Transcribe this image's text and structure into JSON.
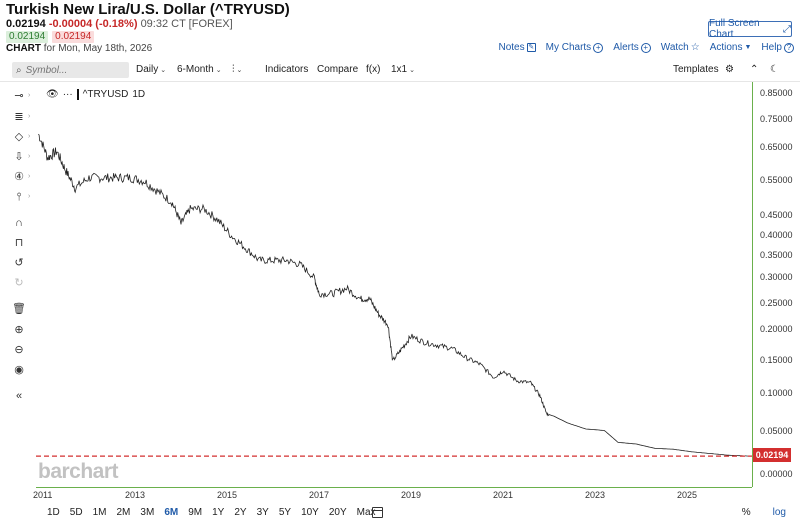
{
  "header": {
    "title": "Turkish New Lira/U.S. Dollar (^TRYUSD)",
    "last": "0.02194",
    "change": "-0.00004 (-0.18%)",
    "time_exchange": "09:32 CT [FOREX]",
    "bid": "0.02194",
    "ask": "0.02194",
    "chart_label": "CHART",
    "chart_date": "for Mon, May 18th, 2026",
    "fullscreen_label": "Full Screen Chart"
  },
  "top_links": {
    "notes": "Notes",
    "my_charts": "My Charts",
    "alerts": "Alerts",
    "watch": "Watch",
    "actions": "Actions",
    "help": "Help"
  },
  "toolbar": {
    "search_placeholder": "Symbol...",
    "interval": "Daily",
    "period": "6-Month",
    "chart_type_icon": "bar-chart-type-icon",
    "indicators": "Indicators",
    "compare": "Compare",
    "fx": "f(x)",
    "layout": "1x1",
    "templates": "Templates"
  },
  "legend": {
    "symbol": "^TRYUSD",
    "interval": "1D",
    "dots": "···"
  },
  "watermark": "barchart",
  "y_axis": {
    "ticks": [
      "0.85000",
      "0.75000",
      "0.65000",
      "0.55000",
      "0.45000",
      "0.40000",
      "0.35000",
      "0.30000",
      "0.25000",
      "0.20000",
      "0.15000",
      "0.10000",
      "0.05000",
      "0.00000"
    ],
    "last_price_label": "0.02194"
  },
  "x_axis": {
    "ticks": [
      "2011",
      "2013",
      "2015",
      "2017",
      "2019",
      "2021",
      "2023",
      "2025"
    ]
  },
  "ranges": {
    "items": [
      "1D",
      "5D",
      "1M",
      "2M",
      "3M",
      "6M",
      "9M",
      "1Y",
      "2Y",
      "3Y",
      "5Y",
      "10Y",
      "20Y",
      "Max"
    ],
    "active": "6M",
    "percent": "%",
    "log": "log"
  },
  "colors": {
    "price_line": "#222222",
    "last_price": "#d32f2f",
    "axis": "#6ab04c",
    "link": "#1f5aa8"
  },
  "chart_data": {
    "type": "line",
    "title": "Turkish New Lira/U.S. Dollar (^TRYUSD)",
    "xlabel": "",
    "ylabel": "",
    "y_scale": "log",
    "ylim": [
      0.0,
      0.85
    ],
    "xlim": [
      2011.0,
      2026.4
    ],
    "grid": false,
    "series": [
      {
        "name": "^TRYUSD",
        "x": [
          2010.9,
          2011.1,
          2011.3,
          2011.5,
          2011.7,
          2012.0,
          2012.3,
          2012.6,
          2012.9,
          2013.2,
          2013.5,
          2013.8,
          2014.0,
          2014.2,
          2014.5,
          2014.8,
          2015.1,
          2015.4,
          2015.7,
          2016.0,
          2016.3,
          2016.6,
          2016.9,
          2017.0,
          2017.3,
          2017.6,
          2017.9,
          2018.1,
          2018.3,
          2018.5,
          2018.6,
          2018.8,
          2019.0,
          2019.3,
          2019.6,
          2019.9,
          2020.2,
          2020.5,
          2020.8,
          2021.0,
          2021.3,
          2021.6,
          2021.8,
          2021.95,
          2022.1,
          2022.4,
          2022.8,
          2023.2,
          2023.5,
          2023.9,
          2024.3,
          2024.7,
          2025.1,
          2025.5,
          2025.9,
          2026.37
        ],
        "y": [
          0.7,
          0.62,
          0.64,
          0.58,
          0.53,
          0.56,
          0.56,
          0.56,
          0.56,
          0.55,
          0.52,
          0.49,
          0.43,
          0.47,
          0.47,
          0.44,
          0.4,
          0.37,
          0.34,
          0.34,
          0.34,
          0.33,
          0.3,
          0.27,
          0.27,
          0.28,
          0.26,
          0.26,
          0.23,
          0.21,
          0.15,
          0.17,
          0.19,
          0.18,
          0.175,
          0.17,
          0.155,
          0.145,
          0.125,
          0.135,
          0.12,
          0.117,
          0.098,
          0.074,
          0.071,
          0.062,
          0.054,
          0.052,
          0.038,
          0.036,
          0.031,
          0.03,
          0.027,
          0.025,
          0.023,
          0.02194
        ]
      }
    ],
    "annotations": [
      {
        "type": "last_price_line",
        "value": 0.02194,
        "label": "0.02194"
      }
    ]
  }
}
